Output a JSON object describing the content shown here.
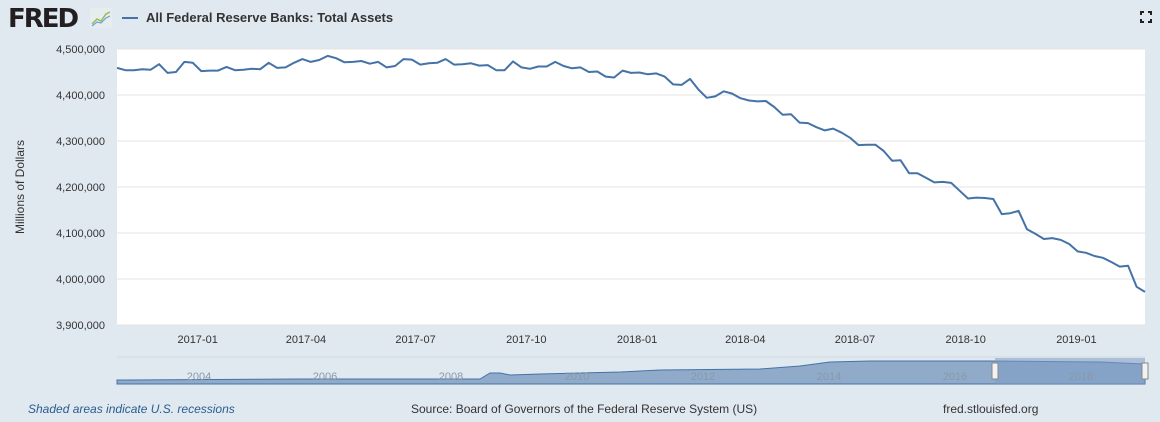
{
  "header": {
    "logo": "FRED",
    "legend_label": "All Federal Reserve Banks: Total Assets",
    "expand_icon": "fullscreen-icon"
  },
  "colors": {
    "series": "#4572a7",
    "background": "#e1e9f0",
    "navigator_fill": "#8fabc9",
    "navigator_selected": "#7d9ac4"
  },
  "chart_data": {
    "type": "line",
    "title": "",
    "ylabel": "Millions of Dollars",
    "xlabel": "",
    "ylim": [
      3900000,
      4500000
    ],
    "yticks": [
      3900000,
      4000000,
      4100000,
      4200000,
      4300000,
      4400000,
      4500000
    ],
    "ytick_labels": [
      "3,900,000",
      "4,000,000",
      "4,100,000",
      "4,200,000",
      "4,300,000",
      "4,400,000",
      "4,500,000"
    ],
    "xlim": [
      "2016-10-26",
      "2019-02-27"
    ],
    "xticks": [
      "2017-01-01",
      "2017-04-01",
      "2017-07-01",
      "2017-10-01",
      "2018-01-01",
      "2018-04-01",
      "2018-07-01",
      "2018-10-01",
      "2019-01-01"
    ],
    "xtick_labels": [
      "2017-01",
      "2017-04",
      "2017-07",
      "2017-10",
      "2018-01",
      "2018-04",
      "2018-07",
      "2018-10",
      "2019-01"
    ],
    "grid": true,
    "series": [
      {
        "name": "All Federal Reserve Banks: Total Assets",
        "x": [
          "2016-10-26",
          "2016-11-02",
          "2016-11-09",
          "2016-11-16",
          "2016-11-23",
          "2016-11-30",
          "2016-12-07",
          "2016-12-14",
          "2016-12-21",
          "2016-12-28",
          "2017-01-04",
          "2017-01-11",
          "2017-01-18",
          "2017-01-25",
          "2017-02-01",
          "2017-02-08",
          "2017-02-15",
          "2017-02-22",
          "2017-03-01",
          "2017-03-08",
          "2017-03-15",
          "2017-03-22",
          "2017-03-29",
          "2017-04-05",
          "2017-04-12",
          "2017-04-19",
          "2017-04-26",
          "2017-05-03",
          "2017-05-10",
          "2017-05-17",
          "2017-05-24",
          "2017-05-31",
          "2017-06-07",
          "2017-06-14",
          "2017-06-21",
          "2017-06-28",
          "2017-07-05",
          "2017-07-12",
          "2017-07-19",
          "2017-07-26",
          "2017-08-02",
          "2017-08-09",
          "2017-08-16",
          "2017-08-23",
          "2017-08-30",
          "2017-09-06",
          "2017-09-13",
          "2017-09-20",
          "2017-09-27",
          "2017-10-04",
          "2017-10-11",
          "2017-10-18",
          "2017-10-25",
          "2017-11-01",
          "2017-11-08",
          "2017-11-15",
          "2017-11-22",
          "2017-11-29",
          "2017-12-06",
          "2017-12-13",
          "2017-12-20",
          "2017-12-27",
          "2018-01-03",
          "2018-01-10",
          "2018-01-17",
          "2018-01-24",
          "2018-01-31",
          "2018-02-07",
          "2018-02-14",
          "2018-02-21",
          "2018-02-28",
          "2018-03-07",
          "2018-03-14",
          "2018-03-21",
          "2018-03-28",
          "2018-04-04",
          "2018-04-11",
          "2018-04-18",
          "2018-04-25",
          "2018-05-02",
          "2018-05-09",
          "2018-05-16",
          "2018-05-23",
          "2018-05-30",
          "2018-06-06",
          "2018-06-13",
          "2018-06-20",
          "2018-06-27",
          "2018-07-04",
          "2018-07-11",
          "2018-07-18",
          "2018-07-25",
          "2018-08-01",
          "2018-08-08",
          "2018-08-15",
          "2018-08-22",
          "2018-08-29",
          "2018-09-05",
          "2018-09-12",
          "2018-09-19",
          "2018-09-26",
          "2018-10-03",
          "2018-10-10",
          "2018-10-17",
          "2018-10-24",
          "2018-10-31",
          "2018-11-07",
          "2018-11-14",
          "2018-11-21",
          "2018-11-28",
          "2018-12-05",
          "2018-12-12",
          "2018-12-19",
          "2018-12-26",
          "2019-01-02",
          "2019-01-09",
          "2019-01-16",
          "2019-01-23",
          "2019-01-30",
          "2019-02-06",
          "2019-02-13",
          "2019-02-20",
          "2019-02-27"
        ],
        "values": [
          4459000,
          4454000,
          4454000,
          4456000,
          4455000,
          4467000,
          4448000,
          4450000,
          4472000,
          4470000,
          4452000,
          4453000,
          4453000,
          4461000,
          4454000,
          4455000,
          4457000,
          4456000,
          4470000,
          4459000,
          4460000,
          4470000,
          4478000,
          4472000,
          4476000,
          4485000,
          4480000,
          4471000,
          4472000,
          4474000,
          4468000,
          4472000,
          4460000,
          4463000,
          4478000,
          4477000,
          4466000,
          4469000,
          4470000,
          4478000,
          4466000,
          4467000,
          4469000,
          4464000,
          4465000,
          4454000,
          4454000,
          4473000,
          4460000,
          4457000,
          4462000,
          4462000,
          4472000,
          4463000,
          4458000,
          4460000,
          4450000,
          4451000,
          4440000,
          4438000,
          4453000,
          4448000,
          4449000,
          4445000,
          4447000,
          4440000,
          4423000,
          4422000,
          4435000,
          4412000,
          4394000,
          4397000,
          4408000,
          4403000,
          4393000,
          4388000,
          4386000,
          4387000,
          4374000,
          4357000,
          4358000,
          4340000,
          4339000,
          4330000,
          4323000,
          4327000,
          4318000,
          4307000,
          4291000,
          4292000,
          4292000,
          4278000,
          4257000,
          4258000,
          4230000,
          4230000,
          4220000,
          4210000,
          4211000,
          4209000,
          4192000,
          4175000,
          4177000,
          4176000,
          4174000,
          4141000,
          4143000,
          4148000,
          4108000,
          4098000,
          4087000,
          4089000,
          4085000,
          4076000,
          4060000,
          4057000,
          4050000,
          4046000,
          4037000,
          4027000,
          4029000,
          3983000,
          3972000
        ]
      }
    ],
    "navigator": {
      "tick_labels": [
        "2004",
        "2006",
        "2008",
        "2010",
        "2012",
        "2014",
        "2016",
        "2018"
      ]
    }
  },
  "footer": {
    "recessions_note": "Shaded areas indicate U.S. recessions",
    "source": "Source: Board of Governors of the Federal Reserve System (US)",
    "site": "fred.stlouisfed.org"
  }
}
